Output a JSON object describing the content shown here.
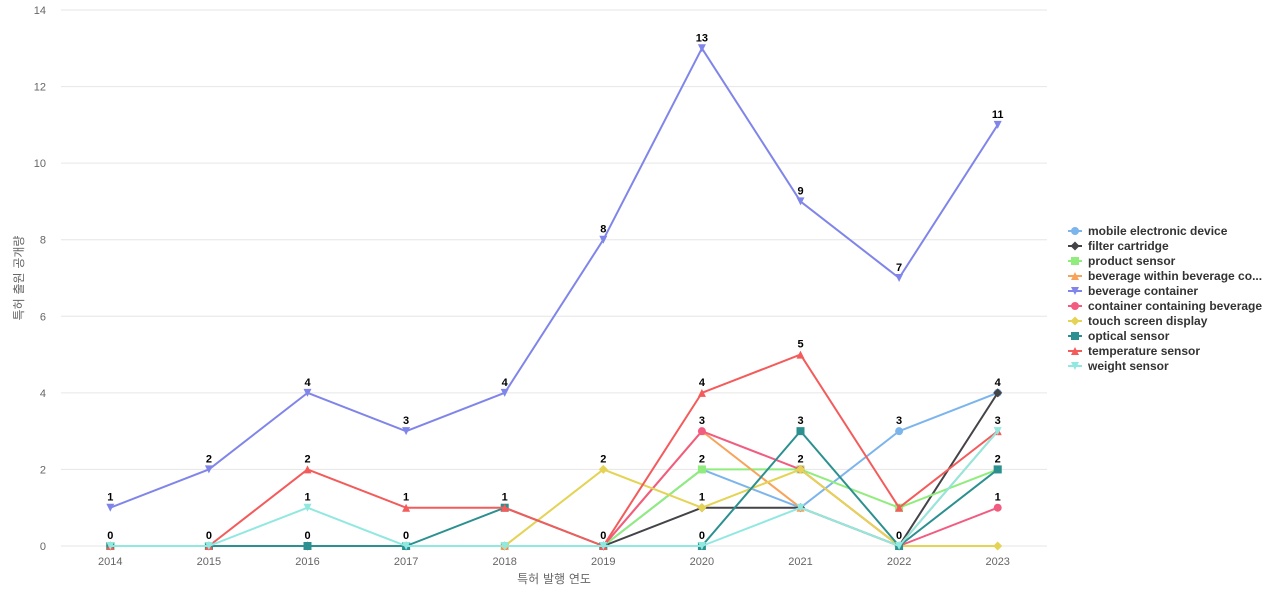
{
  "chart_data": {
    "type": "line",
    "title": "",
    "xlabel": "특허 발행 연도",
    "ylabel": "특허 출원 공개량",
    "ylim": [
      0,
      14
    ],
    "yticks": [
      0,
      2,
      4,
      6,
      8,
      10,
      12,
      14
    ],
    "grid": true,
    "legend_position": "right",
    "categories": [
      "2014",
      "2015",
      "2016",
      "2017",
      "2018",
      "2019",
      "2020",
      "2021",
      "2022",
      "2023"
    ],
    "series": [
      {
        "name": "mobile electronic device",
        "display_name": "mobile electronic device",
        "color": "#7cb5ec",
        "marker": "circle",
        "values": [
          0,
          0,
          0,
          0,
          0,
          0,
          2,
          1,
          3,
          4
        ],
        "labels": [
          false,
          false,
          false,
          false,
          false,
          false,
          false,
          false,
          true,
          false
        ]
      },
      {
        "name": "filter cartridge",
        "display_name": "filter cartridge",
        "color": "#434348",
        "marker": "diamond",
        "values": [
          0,
          0,
          0,
          0,
          0,
          0,
          1,
          1,
          0,
          4
        ],
        "labels": [
          false,
          false,
          false,
          false,
          false,
          false,
          false,
          false,
          false,
          true
        ]
      },
      {
        "name": "product sensor",
        "display_name": "product sensor",
        "color": "#90ed7d",
        "marker": "square",
        "values": [
          0,
          0,
          0,
          0,
          0,
          0,
          2,
          2,
          1,
          2
        ],
        "labels": [
          false,
          false,
          false,
          false,
          false,
          false,
          true,
          false,
          false,
          false
        ]
      },
      {
        "name": "beverage within beverage container",
        "display_name": "beverage within beverage co...",
        "color": "#f7a35c",
        "marker": "triangle",
        "values": [
          0,
          0,
          0,
          0,
          0,
          0,
          3,
          1,
          0,
          3
        ],
        "labels": [
          false,
          false,
          false,
          false,
          false,
          false,
          false,
          false,
          false,
          false
        ]
      },
      {
        "name": "beverage container",
        "display_name": "beverage container",
        "color": "#8085e9",
        "marker": "triangle-down",
        "values": [
          1,
          2,
          4,
          3,
          4,
          8,
          13,
          9,
          7,
          11
        ],
        "labels": [
          true,
          true,
          true,
          true,
          true,
          true,
          true,
          true,
          true,
          true
        ]
      },
      {
        "name": "container containing beverage",
        "display_name": "container containing beverage",
        "color": "#f15c80",
        "marker": "circle",
        "values": [
          0,
          0,
          0,
          0,
          0,
          0,
          3,
          2,
          0,
          1
        ],
        "labels": [
          false,
          false,
          false,
          false,
          false,
          false,
          true,
          false,
          false,
          true
        ]
      },
      {
        "name": "touch screen display",
        "display_name": "touch screen display",
        "color": "#e4d354",
        "marker": "diamond",
        "values": [
          0,
          0,
          0,
          0,
          0,
          2,
          1,
          2,
          0,
          0
        ],
        "labels": [
          false,
          false,
          false,
          false,
          false,
          true,
          true,
          true,
          false,
          false
        ]
      },
      {
        "name": "optical sensor",
        "display_name": "optical sensor",
        "color": "#2b908f",
        "marker": "square",
        "values": [
          0,
          0,
          0,
          0,
          1,
          0,
          0,
          3,
          0,
          2
        ],
        "labels": [
          true,
          true,
          true,
          true,
          true,
          true,
          true,
          true,
          true,
          true
        ]
      },
      {
        "name": "temperature sensor",
        "display_name": "temperature sensor",
        "color": "#f45b5b",
        "marker": "triangle",
        "values": [
          0,
          0,
          2,
          1,
          1,
          0,
          4,
          5,
          1,
          3
        ],
        "labels": [
          false,
          false,
          true,
          true,
          false,
          false,
          true,
          true,
          false,
          false
        ]
      },
      {
        "name": "weight sensor",
        "display_name": "weight sensor",
        "color": "#91e8e1",
        "marker": "triangle-down",
        "values": [
          0,
          0,
          1,
          0,
          0,
          0,
          0,
          1,
          0,
          3
        ],
        "labels": [
          false,
          false,
          true,
          false,
          false,
          false,
          false,
          false,
          false,
          true
        ]
      }
    ]
  }
}
